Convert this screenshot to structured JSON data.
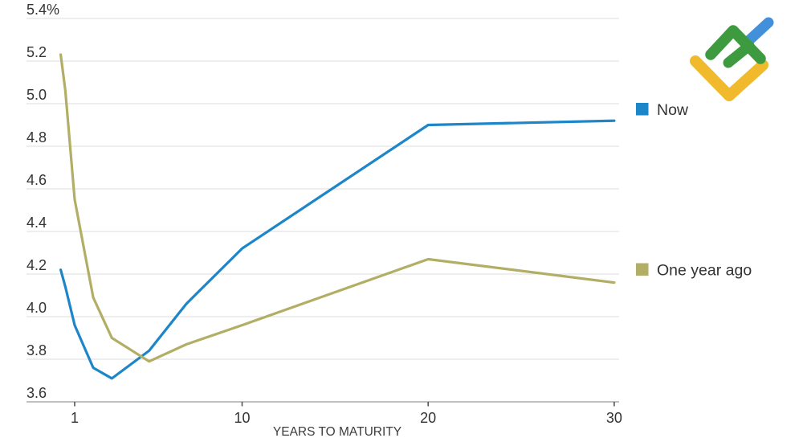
{
  "chart_data": {
    "type": "line",
    "title": "",
    "xlabel": "YEARS TO MATURITY",
    "ylabel": "",
    "y_unit": "%",
    "x": [
      0.25,
      0.5,
      1,
      2,
      3,
      5,
      7,
      10,
      20,
      30
    ],
    "series": [
      {
        "name": "Now",
        "color": "#1d86c8",
        "values": [
          4.22,
          4.14,
          3.96,
          3.76,
          3.71,
          3.84,
          4.06,
          4.32,
          4.9,
          4.92
        ]
      },
      {
        "name": "One year ago",
        "color": "#b2ae65",
        "values": [
          5.23,
          5.06,
          4.55,
          4.09,
          3.9,
          3.79,
          3.87,
          3.96,
          4.27,
          4.16
        ]
      }
    ],
    "y_ticks": [
      {
        "value": 5.4,
        "label": "5.4%"
      },
      {
        "value": 5.2,
        "label": "5.2"
      },
      {
        "value": 5.0,
        "label": "5.0"
      },
      {
        "value": 4.8,
        "label": "4.8"
      },
      {
        "value": 4.6,
        "label": "4.6"
      },
      {
        "value": 4.4,
        "label": "4.4"
      },
      {
        "value": 4.2,
        "label": "4.2"
      },
      {
        "value": 4.0,
        "label": "4.0"
      },
      {
        "value": 3.8,
        "label": "3.8"
      },
      {
        "value": 3.6,
        "label": "3.6"
      }
    ],
    "x_ticks": [
      {
        "value": 1,
        "label": "1"
      },
      {
        "value": 10,
        "label": "10"
      },
      {
        "value": 20,
        "label": "20"
      },
      {
        "value": 30,
        "label": "30"
      }
    ],
    "ylim": [
      3.6,
      5.4
    ],
    "xlim": [
      0,
      30.5
    ],
    "grid": "horizontal",
    "legend_position": "right"
  },
  "colors": {
    "grid": "#dedede",
    "axis": "#9b9b9b",
    "tick_mark": "#555555",
    "tick_text": "#333333",
    "axis_title": "#3d3d3d",
    "legend_text": "#333333"
  },
  "logo": {
    "name": "broker-logo",
    "yellow": "#f0ba2c",
    "green": "#3d9a3e",
    "blue": "#4190d9"
  }
}
